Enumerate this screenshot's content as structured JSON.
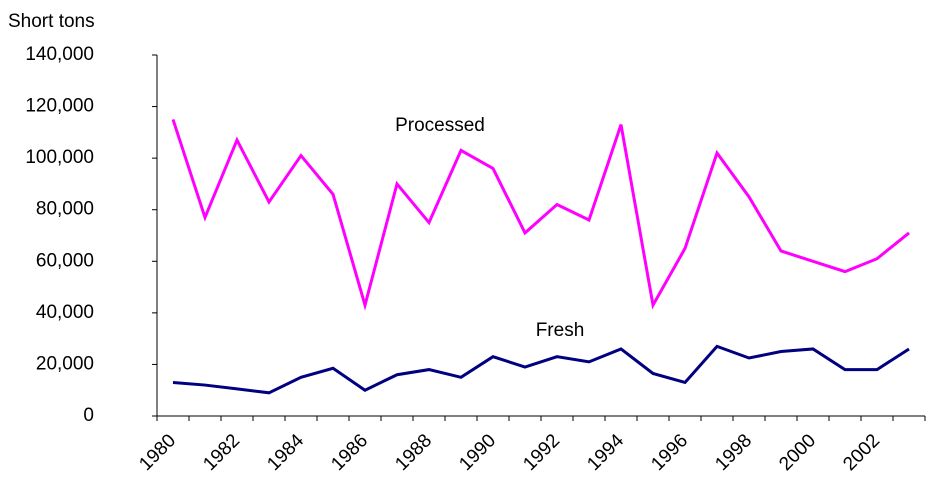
{
  "chart_data": {
    "type": "line",
    "y_label": "Short tons",
    "categories": [
      "1980",
      null,
      "1982",
      null,
      "1984",
      null,
      "1986",
      null,
      "1988",
      null,
      "1990",
      null,
      "1992",
      null,
      "1994",
      null,
      "1996",
      null,
      "1998",
      null,
      "2000",
      null,
      "2002",
      null
    ],
    "series": [
      {
        "name": "Processed",
        "color": "#ff00ff",
        "values": [
          115000,
          77000,
          107000,
          83000,
          101000,
          86000,
          43000,
          90000,
          75000,
          103000,
          96000,
          71000,
          82000,
          76000,
          113000,
          43000,
          65000,
          102000,
          85000,
          64000,
          60000,
          56000,
          61000,
          71000
        ]
      },
      {
        "name": "Fresh",
        "color": "#000080",
        "values": [
          13000,
          12000,
          10500,
          9000,
          15000,
          18500,
          10000,
          16000,
          18000,
          15000,
          23000,
          19000,
          23000,
          21000,
          26000,
          16500,
          13000,
          27000,
          22500,
          25000,
          26000,
          18000,
          18000,
          26000
        ]
      }
    ],
    "ylim": [
      0,
      140000
    ],
    "yticks": [
      0,
      {
        "value": 20000,
        "label": "20,000"
      },
      {
        "value": 40000,
        "label": "40,000"
      },
      {
        "value": 60000,
        "label": "60,000"
      },
      {
        "value": 80000,
        "label": "80,000"
      },
      {
        "value": 100000,
        "label": "100,000"
      },
      {
        "value": 120000,
        "label": "120,000"
      },
      {
        "value": 140000,
        "label": "140,000"
      }
    ],
    "grid": false
  }
}
